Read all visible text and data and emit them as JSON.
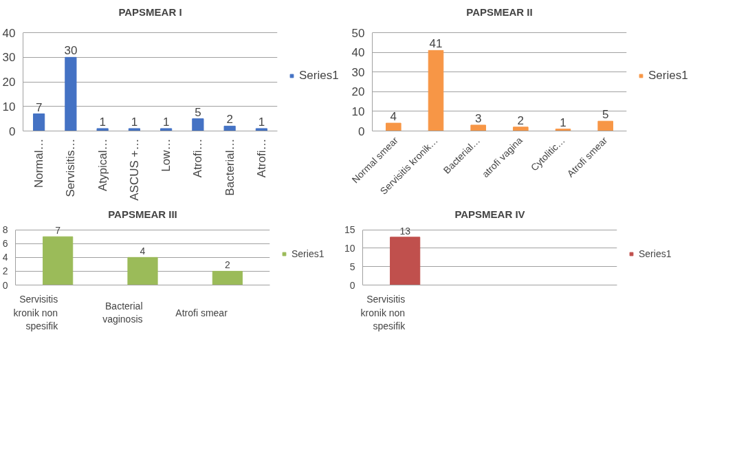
{
  "chart_data": [
    {
      "type": "bar",
      "title": "PAPSMEAR I",
      "categories": [
        "Normal…",
        "Servisitis…",
        "Atypical…",
        "ASCUS +…",
        "Low…",
        "Atrofi…",
        "Bacterial…",
        "Atrofi…"
      ],
      "series": [
        {
          "name": "Series1",
          "color": "#4472c4",
          "values": [
            7,
            30,
            1,
            1,
            1,
            5,
            2,
            1
          ]
        }
      ],
      "ylim": [
        0,
        40
      ],
      "yticks": [
        0,
        10,
        20,
        30,
        40
      ],
      "grid": "y",
      "legend": "right",
      "data_labels": true
    },
    {
      "type": "bar",
      "title": "PAPSMEAR II",
      "categories": [
        "Normal smear",
        "Servisitis kronik…",
        "Bacterial…",
        "atrofi vagina",
        "Cytolitic…",
        "Atrofi smear"
      ],
      "series": [
        {
          "name": "Series1",
          "color": "#f79646",
          "values": [
            4,
            41,
            3,
            2,
            1,
            5
          ]
        }
      ],
      "ylim": [
        0,
        50
      ],
      "yticks": [
        0,
        10,
        20,
        30,
        40,
        50
      ],
      "grid": "y",
      "legend": "right",
      "data_labels": true
    },
    {
      "type": "bar",
      "title": "PAPSMEAR III",
      "categories": [
        "Servisitis kronik non spesifik",
        "Bacterial vaginosis",
        "Atrofi smear"
      ],
      "series": [
        {
          "name": "Series1",
          "color": "#9bbb59",
          "values": [
            7,
            4,
            2
          ]
        }
      ],
      "ylim": [
        0,
        8
      ],
      "yticks": [
        0,
        2,
        4,
        6,
        8
      ],
      "grid": "y",
      "legend": "right",
      "data_labels": true
    },
    {
      "type": "bar",
      "title": "PAPSMEAR IV",
      "categories": [
        "Servisitis kronik non spesifik",
        null,
        null
      ],
      "series": [
        {
          "name": "Series1",
          "color": "#c0504d",
          "values": [
            13,
            null,
            null
          ]
        }
      ],
      "ylim": [
        0,
        15
      ],
      "yticks": [
        0,
        5,
        10,
        15
      ],
      "grid": "y",
      "legend": "right",
      "data_labels": true
    }
  ]
}
